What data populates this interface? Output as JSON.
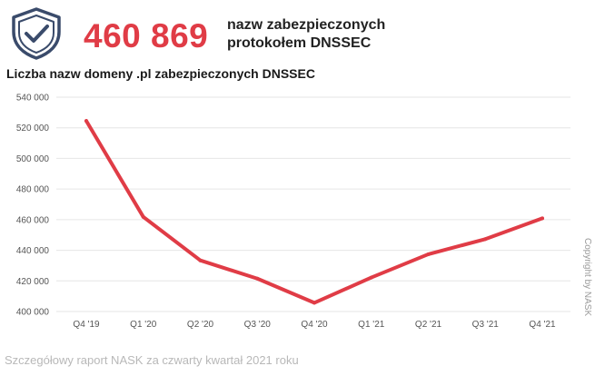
{
  "header": {
    "big_number": "460 869",
    "headline_line1": "nazw zabezpieczonych",
    "headline_line2": "protokołem DNSSEC",
    "icon": "shield-check-icon"
  },
  "chart_data": {
    "type": "line",
    "title": "Liczba nazw domeny .pl zabezpieczonych DNSSEC",
    "categories": [
      "Q4 '19",
      "Q1 '20",
      "Q2 '20",
      "Q3 '20",
      "Q4 '20",
      "Q1 '21",
      "Q2 '21",
      "Q3 '21",
      "Q4 '21"
    ],
    "series": [
      {
        "values": [
          524500,
          461800,
          433400,
          421500,
          405700,
          422200,
          437400,
          447300,
          460869
        ]
      }
    ],
    "y_ticks": [
      "540 000",
      "520 000",
      "500 000",
      "480 000",
      "460 000",
      "440 000",
      "420 000",
      "400 000"
    ],
    "ylim": [
      400000,
      540000
    ],
    "grid": true,
    "line_color": "#e03c46"
  },
  "copyright": "Copyright by NASK",
  "footer": "Szczegółowy raport NASK za czwarty kwartał 2021 roku"
}
